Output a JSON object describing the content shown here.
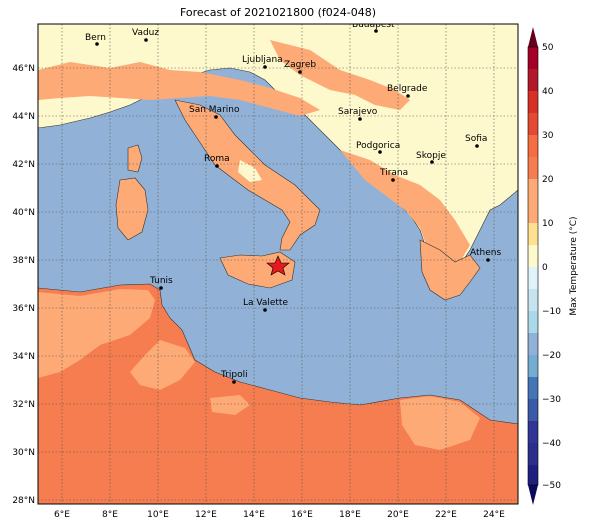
{
  "title": "Forecast of 2021021800 (f024-048)",
  "colorbar": {
    "label": "Max Temperature (°C)",
    "ticks": [
      "50",
      "40",
      "30",
      "20",
      "10",
      "0",
      "−10",
      "−20",
      "−30",
      "−40",
      "−50"
    ]
  },
  "axes": {
    "lon_ticks": [
      "6°E",
      "8°E",
      "10°E",
      "12°E",
      "14°E",
      "16°E",
      "18°E",
      "20°E",
      "22°E",
      "24°E"
    ],
    "lat_ticks": [
      "46°N",
      "44°N",
      "42°N",
      "40°N",
      "38°N",
      "36°N",
      "34°N",
      "32°N",
      "30°N",
      "28°N"
    ]
  },
  "cities": [
    {
      "name": "Bern"
    },
    {
      "name": "Vaduz"
    },
    {
      "name": "Budapest"
    },
    {
      "name": "Ljubljana"
    },
    {
      "name": "Zagreb"
    },
    {
      "name": "Belgrade"
    },
    {
      "name": "San Marino"
    },
    {
      "name": "Sarajevo"
    },
    {
      "name": "Sofia"
    },
    {
      "name": "Podgorica"
    },
    {
      "name": "Skopje"
    },
    {
      "name": "Roma"
    },
    {
      "name": "Tirana"
    },
    {
      "name": "Athens"
    },
    {
      "name": "Tunis"
    },
    {
      "name": "La Valette"
    },
    {
      "name": "Tripoli"
    }
  ],
  "colors": {
    "sea": "#91b2d6",
    "warm_10_20": "#fdaa76",
    "warm_20_30": "#f67d4f",
    "cool_0_10": "#fef9cc",
    "cold_lt0": "#e0f3f8",
    "marker": "#e41a1c"
  }
}
